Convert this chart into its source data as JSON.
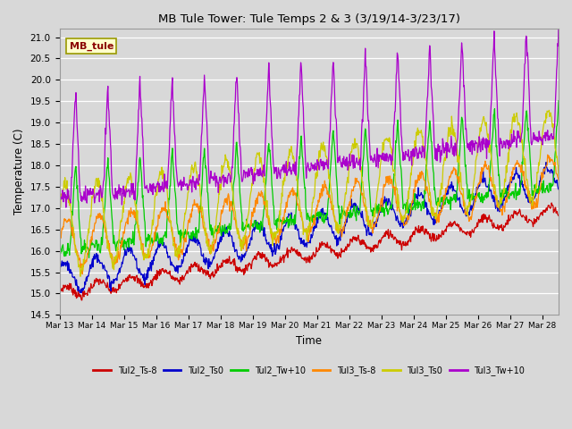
{
  "title": "MB Tule Tower: Tule Temps 2 & 3 (3/19/14-3/23/17)",
  "xlabel": "Time",
  "ylabel": "Temperature (C)",
  "ylim": [
    14.5,
    21.2
  ],
  "xlim_days": [
    0,
    15.5
  ],
  "annotation": "MB_tule",
  "legend": [
    "Tul2_Ts-8",
    "Tul2_Ts0",
    "Tul2_Tw+10",
    "Tul3_Ts-8",
    "Tul3_Ts0",
    "Tul3_Tw+10"
  ],
  "colors": [
    "#cc0000",
    "#0000cc",
    "#00cc00",
    "#ff8800",
    "#cccc00",
    "#aa00cc"
  ],
  "n_points": 1000,
  "tick_days": [
    0,
    1,
    2,
    3,
    4,
    5,
    6,
    7,
    8,
    9,
    10,
    11,
    12,
    13,
    14,
    15
  ],
  "tick_labels": [
    "Mar 13",
    "Mar 14",
    "Mar 15",
    "Mar 16",
    "Mar 17",
    "Mar 18",
    "Mar 19",
    "Mar 20",
    "Mar 21",
    "Mar 22",
    "Mar 23",
    "Mar 24",
    "Mar 25",
    "Mar 26",
    "Mar 27",
    "Mar 28"
  ]
}
